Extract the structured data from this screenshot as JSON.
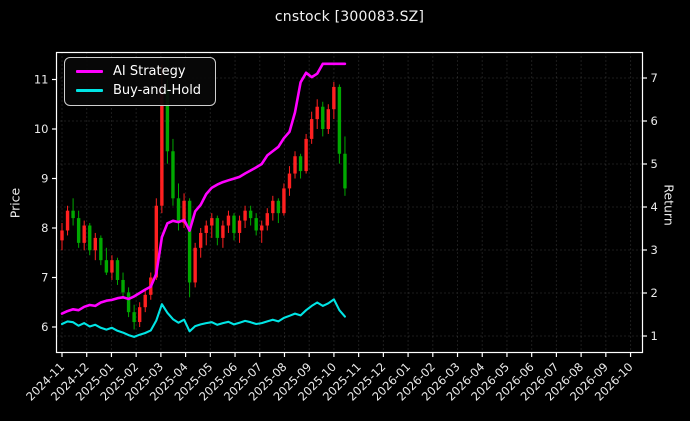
{
  "chart_data": {
    "type": "candlestick-with-lines",
    "title": "cnstock [300083.SZ]",
    "background": "#000000",
    "text_color": "#eaeaea",
    "grid": true,
    "grid_color": "#3a3a3a",
    "frame_color": "#ffffff",
    "left_axis": {
      "label": "Price",
      "ticks": [
        6,
        7,
        8,
        9,
        10,
        11
      ],
      "range": [
        5.48,
        11.55
      ]
    },
    "right_axis": {
      "label": "Return",
      "ticks": [
        1,
        2,
        3,
        4,
        5,
        6,
        7
      ],
      "range": [
        0.62,
        7.59
      ]
    },
    "x_axis": {
      "tick_labels": [
        "2024-11",
        "2024-12",
        "2025-01",
        "2025-02",
        "2025-03",
        "2025-04",
        "2025-05",
        "2025-06",
        "2025-07",
        "2025-08",
        "2025-09",
        "2025-10",
        "2025-11",
        "2025-12",
        "2026-01",
        "2026-02",
        "2026-03",
        "2026-04",
        "2026-05",
        "2026-06",
        "2026-07",
        "2026-08",
        "2026-09",
        "2026-10"
      ],
      "label_rotation_deg": 45
    },
    "candles": {
      "axis": "left",
      "up_color": "#ff2020",
      "down_color": "#00a800",
      "dates": [
        "2024-11-01",
        "2024-11-08",
        "2024-11-15",
        "2024-11-22",
        "2024-11-29",
        "2024-12-06",
        "2024-12-13",
        "2024-12-20",
        "2024-12-27",
        "2025-01-03",
        "2025-01-10",
        "2025-01-17",
        "2025-01-24",
        "2025-01-31",
        "2025-02-07",
        "2025-02-14",
        "2025-02-21",
        "2025-02-28",
        "2025-03-07",
        "2025-03-14",
        "2025-03-21",
        "2025-03-28",
        "2025-04-04",
        "2025-04-11",
        "2025-04-18",
        "2025-04-25",
        "2025-05-02",
        "2025-05-09",
        "2025-05-16",
        "2025-05-23",
        "2025-05-30",
        "2025-06-06",
        "2025-06-13",
        "2025-06-20",
        "2025-06-27",
        "2025-07-04",
        "2025-07-11",
        "2025-07-18",
        "2025-07-25",
        "2025-08-01",
        "2025-08-08",
        "2025-08-15",
        "2025-08-22",
        "2025-08-29",
        "2025-09-05",
        "2025-09-12",
        "2025-09-19",
        "2025-09-26",
        "2025-10-03",
        "2025-10-10",
        "2025-10-17",
        "2025-10-24"
      ],
      "ohlc": [
        [
          7.75,
          8.1,
          7.55,
          7.95
        ],
        [
          7.95,
          8.45,
          7.85,
          8.35
        ],
        [
          8.35,
          8.6,
          8.05,
          8.2
        ],
        [
          8.2,
          8.35,
          7.6,
          7.7
        ],
        [
          7.7,
          8.15,
          7.55,
          8.05
        ],
        [
          8.05,
          8.1,
          7.45,
          7.55
        ],
        [
          7.55,
          7.9,
          7.35,
          7.8
        ],
        [
          7.8,
          7.85,
          7.25,
          7.35
        ],
        [
          7.35,
          7.6,
          7.05,
          7.1
        ],
        [
          7.1,
          7.45,
          6.95,
          7.35
        ],
        [
          7.35,
          7.4,
          6.85,
          6.95
        ],
        [
          6.95,
          7.1,
          6.6,
          6.7
        ],
        [
          6.7,
          6.8,
          6.2,
          6.3
        ],
        [
          6.3,
          6.45,
          5.95,
          6.1
        ],
        [
          6.1,
          6.5,
          6.0,
          6.4
        ],
        [
          6.4,
          6.75,
          6.3,
          6.65
        ],
        [
          6.65,
          7.1,
          6.55,
          7.0
        ],
        [
          7.0,
          8.6,
          6.95,
          8.45
        ],
        [
          8.45,
          11.3,
          8.3,
          10.8
        ],
        [
          10.8,
          11.0,
          9.3,
          9.55
        ],
        [
          9.55,
          9.8,
          8.45,
          8.6
        ],
        [
          8.6,
          8.9,
          7.95,
          8.1
        ],
        [
          8.1,
          8.7,
          8.0,
          8.55
        ],
        [
          8.55,
          8.6,
          6.6,
          6.9
        ],
        [
          6.9,
          7.7,
          6.8,
          7.6
        ],
        [
          7.6,
          8.0,
          7.4,
          7.9
        ],
        [
          7.9,
          8.15,
          7.65,
          8.05
        ],
        [
          8.05,
          8.3,
          7.8,
          8.2
        ],
        [
          8.2,
          8.25,
          7.65,
          7.8
        ],
        [
          7.8,
          8.15,
          7.6,
          8.05
        ],
        [
          8.05,
          8.35,
          7.9,
          8.25
        ],
        [
          8.25,
          8.3,
          7.75,
          7.9
        ],
        [
          7.9,
          8.25,
          7.7,
          8.15
        ],
        [
          8.15,
          8.45,
          8.0,
          8.35
        ],
        [
          8.35,
          8.45,
          8.05,
          8.2
        ],
        [
          8.2,
          8.3,
          7.85,
          7.95
        ],
        [
          7.95,
          8.15,
          7.7,
          8.05
        ],
        [
          8.05,
          8.4,
          7.95,
          8.3
        ],
        [
          8.3,
          8.65,
          8.15,
          8.55
        ],
        [
          8.55,
          8.6,
          8.1,
          8.3
        ],
        [
          8.3,
          8.9,
          8.25,
          8.8
        ],
        [
          8.8,
          9.25,
          8.65,
          9.1
        ],
        [
          9.1,
          9.55,
          9.0,
          9.45
        ],
        [
          9.45,
          9.5,
          9.0,
          9.15
        ],
        [
          9.15,
          9.9,
          9.1,
          9.8
        ],
        [
          9.8,
          10.35,
          9.7,
          10.2
        ],
        [
          10.2,
          10.6,
          10.0,
          10.45
        ],
        [
          10.45,
          10.55,
          9.85,
          10.0
        ],
        [
          10.0,
          10.5,
          9.9,
          10.4
        ],
        [
          10.4,
          10.95,
          10.2,
          10.85
        ],
        [
          10.85,
          10.9,
          9.3,
          9.5
        ],
        [
          9.5,
          9.85,
          8.65,
          8.8
        ]
      ]
    },
    "series": [
      {
        "name": "AI Strategy",
        "color": "#ff00ff",
        "axis": "right",
        "line_width": 2.6,
        "values": [
          1.52,
          1.58,
          1.62,
          1.6,
          1.68,
          1.72,
          1.7,
          1.78,
          1.82,
          1.84,
          1.88,
          1.9,
          1.86,
          1.92,
          2.0,
          2.08,
          2.15,
          2.45,
          3.3,
          3.62,
          3.68,
          3.65,
          3.7,
          3.45,
          3.9,
          4.05,
          4.3,
          4.45,
          4.52,
          4.58,
          4.62,
          4.66,
          4.7,
          4.78,
          4.85,
          4.92,
          5.0,
          5.2,
          5.3,
          5.4,
          5.6,
          5.75,
          6.2,
          6.9,
          7.12,
          7.02,
          7.1,
          7.33,
          7.33,
          7.33,
          7.33,
          7.33
        ]
      },
      {
        "name": "Buy-and-Hold",
        "color": "#00e5e5",
        "axis": "right",
        "line_width": 2.1,
        "values": [
          1.28,
          1.34,
          1.32,
          1.24,
          1.3,
          1.22,
          1.26,
          1.19,
          1.15,
          1.19,
          1.12,
          1.08,
          1.02,
          0.98,
          1.03,
          1.07,
          1.13,
          1.36,
          1.74,
          1.54,
          1.39,
          1.31,
          1.38,
          1.11,
          1.23,
          1.27,
          1.3,
          1.32,
          1.26,
          1.3,
          1.33,
          1.27,
          1.31,
          1.35,
          1.32,
          1.28,
          1.3,
          1.34,
          1.38,
          1.34,
          1.42,
          1.47,
          1.52,
          1.48,
          1.6,
          1.7,
          1.78,
          1.7,
          1.76,
          1.85,
          1.6,
          1.45
        ]
      }
    ],
    "legend": {
      "position": "upper-left"
    }
  }
}
